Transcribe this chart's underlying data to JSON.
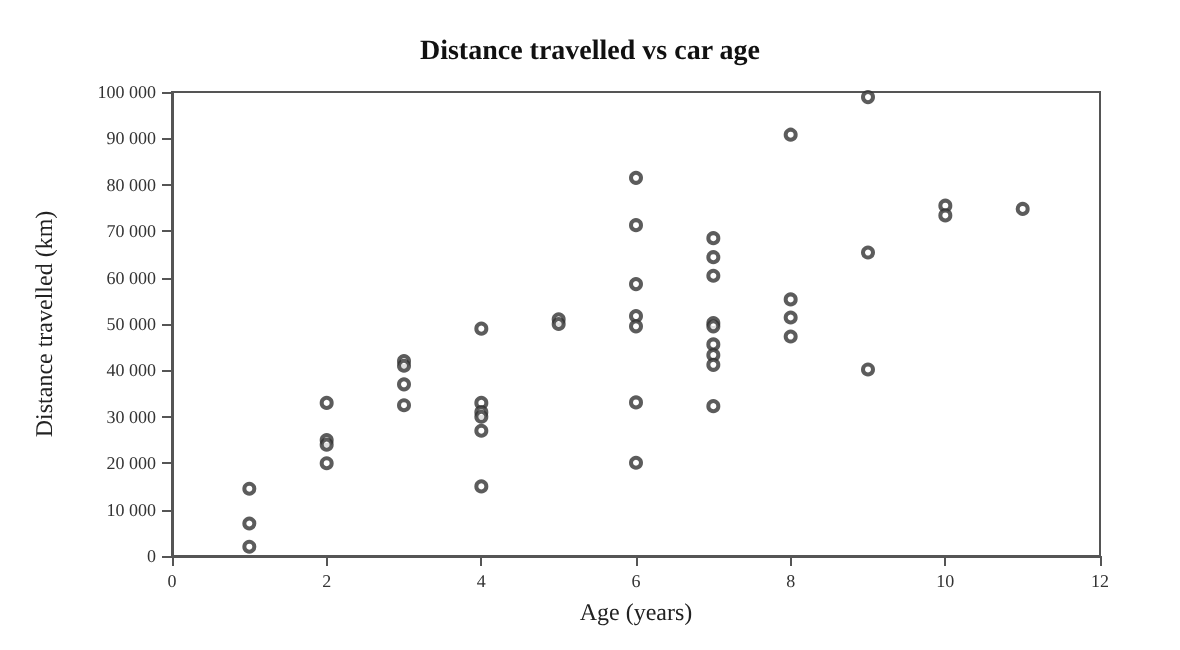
{
  "chart_data": {
    "type": "scatter",
    "title": "Distance travelled vs car age",
    "xlabel": "Age (years)",
    "ylabel": "Distance travelled (km)",
    "x": [
      1,
      1,
      1,
      2,
      2,
      2,
      2,
      3,
      3,
      3,
      3,
      4,
      4,
      4,
      4,
      4,
      4,
      5,
      5,
      6,
      6,
      6,
      6,
      6,
      6,
      6,
      7,
      7,
      7,
      7,
      7,
      7,
      7,
      7,
      7,
      8,
      8,
      8,
      8,
      9,
      9,
      9,
      10,
      10,
      11
    ],
    "values": [
      14500,
      7000,
      2000,
      33000,
      25000,
      24000,
      20000,
      42000,
      41000,
      37000,
      32500,
      49000,
      33000,
      31000,
      30000,
      27000,
      15000,
      51000,
      50000,
      81500,
      71300,
      58600,
      51700,
      49500,
      33100,
      20100,
      68500,
      64400,
      60400,
      50200,
      49500,
      45600,
      43300,
      41200,
      32300,
      90800,
      55300,
      51400,
      47300,
      98900,
      65400,
      40200,
      75500,
      73400,
      74800
    ],
    "color": "#333333",
    "marker": "circle",
    "grid": false,
    "xlim": [
      0,
      12
    ],
    "xticks": [
      0,
      2,
      4,
      6,
      8,
      10,
      12
    ],
    "ylim": [
      0,
      100000
    ],
    "yticks": [
      0,
      {
        "value": 10000,
        "label": "10 000"
      },
      {
        "value": 20000,
        "label": "20 000"
      },
      {
        "value": 30000,
        "label": "30 000"
      },
      {
        "value": 40000,
        "label": "40 000"
      },
      {
        "value": 50000,
        "label": "50 000"
      },
      {
        "value": 60000,
        "label": "60 000"
      },
      {
        "value": 70000,
        "label": "70 000"
      },
      {
        "value": 80000,
        "label": "80 000"
      },
      {
        "value": 90000,
        "label": "90 000"
      },
      {
        "value": 100000,
        "label": "100 000"
      }
    ]
  }
}
